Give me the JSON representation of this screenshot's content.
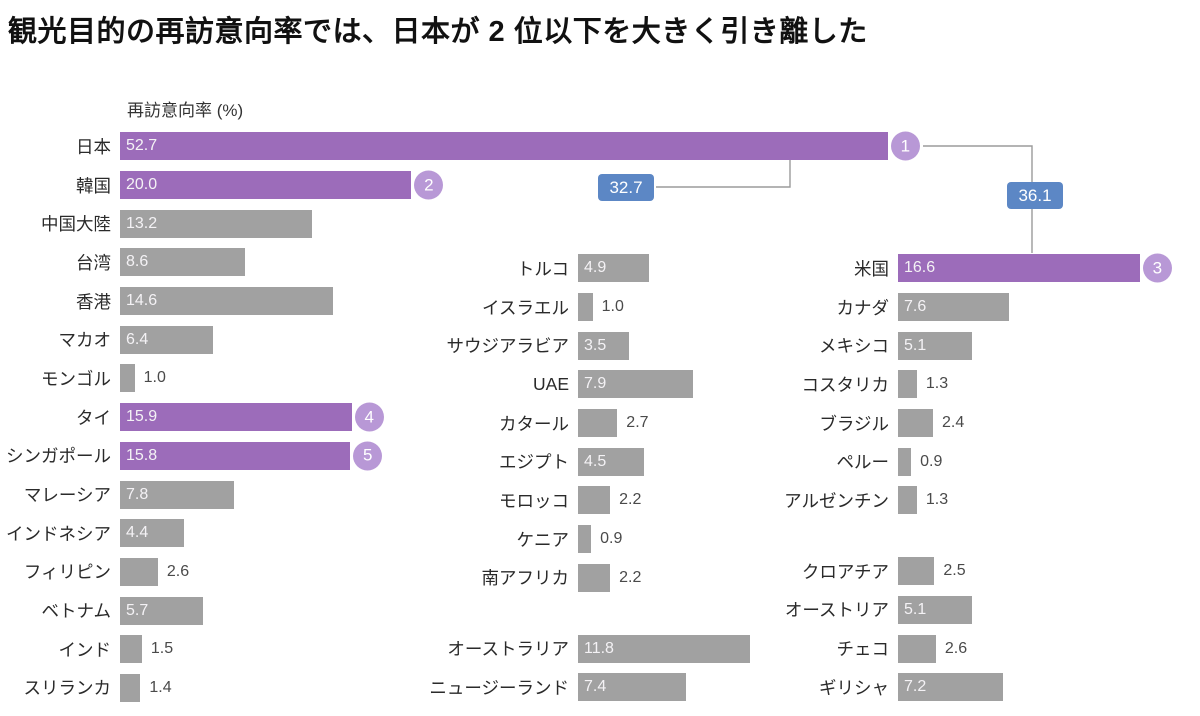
{
  "title": "観光目的の再訪意向率では、日本が 2 位以下を大きく引き離した",
  "axis_label": "再訪意向率 (%)",
  "colors": {
    "bar_highlight": "#9c6cba",
    "bar_default": "#a1a1a1",
    "rank_badge": "#b898d6",
    "callout_badge": "#5c87c5"
  },
  "chart_data": {
    "type": "bar",
    "orientation": "horizontal",
    "title": "観光目的の再訪意向率では、日本が 2 位以下を大きく引き離した",
    "xlabel": "再訪意向率 (%)",
    "unit": "%",
    "xlim": [
      0,
      55
    ],
    "grid": false,
    "legend": false,
    "callouts": {
      "japan_korea": "32.7",
      "japan_us": "36.1"
    },
    "columns": [
      {
        "name": "asia",
        "rows": [
          {
            "label": "日本",
            "value": 52.7,
            "highlight": true,
            "rank": "1"
          },
          {
            "label": "韓国",
            "value": 20.0,
            "highlight": true,
            "rank": "2"
          },
          {
            "label": "中国大陸",
            "value": 13.2
          },
          {
            "label": "台湾",
            "value": 8.6
          },
          {
            "label": "香港",
            "value": 14.6
          },
          {
            "label": "マカオ",
            "value": 6.4
          },
          {
            "label": "モンゴル",
            "value": 1.0
          },
          {
            "label": "タイ",
            "value": 15.9,
            "highlight": true,
            "rank": "4"
          },
          {
            "label": "シンガポール",
            "value": 15.8,
            "highlight": true,
            "rank": "5"
          },
          {
            "label": "マレーシア",
            "value": 7.8
          },
          {
            "label": "インドネシア",
            "value": 4.4
          },
          {
            "label": "フィリピン",
            "value": 2.6
          },
          {
            "label": "ベトナム",
            "value": 5.7
          },
          {
            "label": "インド",
            "value": 1.5
          },
          {
            "label": "スリランカ",
            "value": 1.4
          }
        ]
      },
      {
        "name": "middle-east-africa-oceania",
        "rows": [
          {
            "label": "トルコ",
            "value": 4.9
          },
          {
            "label": "イスラエル",
            "value": 1.0
          },
          {
            "label": "サウジアラビア",
            "value": 3.5
          },
          {
            "label": "UAE",
            "value": 7.9
          },
          {
            "label": "カタール",
            "value": 2.7
          },
          {
            "label": "エジプト",
            "value": 4.5
          },
          {
            "label": "モロッコ",
            "value": 2.2
          },
          {
            "label": "ケニア",
            "value": 0.9
          },
          {
            "label": "南アフリカ",
            "value": 2.2
          },
          {
            "gap": true
          },
          {
            "label": "オーストラリア",
            "value": 11.8
          },
          {
            "label": "ニュージーランド",
            "value": 7.4
          }
        ]
      },
      {
        "name": "americas-europe",
        "rows": [
          {
            "label": "米国",
            "value": 16.6,
            "highlight": true,
            "rank": "3"
          },
          {
            "label": "カナダ",
            "value": 7.6
          },
          {
            "label": "メキシコ",
            "value": 5.1
          },
          {
            "label": "コスタリカ",
            "value": 1.3
          },
          {
            "label": "ブラジル",
            "value": 2.4
          },
          {
            "label": "ペルー",
            "value": 0.9
          },
          {
            "label": "アルゼンチン",
            "value": 1.3
          },
          {
            "gap": true
          },
          {
            "label": "クロアチア",
            "value": 2.5
          },
          {
            "label": "オーストリア",
            "value": 5.1
          },
          {
            "label": "チェコ",
            "value": 2.6
          },
          {
            "label": "ギリシャ",
            "value": 7.2
          }
        ]
      }
    ]
  }
}
